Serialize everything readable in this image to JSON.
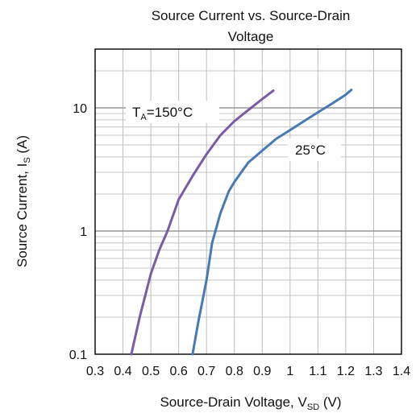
{
  "chart_data": {
    "type": "line",
    "title_line1": "Source Current vs. Source-Drain",
    "title_line2": "Voltage",
    "xlabel": {
      "main": "Source-Drain Voltage, V",
      "sub": "SD",
      "unit": " (V)"
    },
    "ylabel": {
      "main": "Source Current, I",
      "sub": "S",
      "unit": " (A)"
    },
    "x_scale": "linear",
    "y_scale": "log",
    "xlim": [
      0.3,
      1.4
    ],
    "ylim": [
      0.1,
      30
    ],
    "x_ticks": [
      "0.3",
      "0.4",
      "0.5",
      "0.6",
      "0.7",
      "0.8",
      "0.9",
      "1",
      "1.1",
      "1.2",
      "1.3",
      "1.4"
    ],
    "x_tick_values": [
      0.3,
      0.4,
      0.5,
      0.6,
      0.7,
      0.8,
      0.9,
      1.0,
      1.1,
      1.2,
      1.3,
      1.4
    ],
    "y_ticks": [
      "0.1",
      "1",
      "10"
    ],
    "y_tick_values": [
      0.1,
      1,
      10
    ],
    "grid": true,
    "series": [
      {
        "label_main": "T",
        "label_sub": "A",
        "label_rest": "=150°C",
        "color": "#7b5aa6",
        "x": [
          0.43,
          0.46,
          0.5,
          0.53,
          0.56,
          0.6,
          0.65,
          0.7,
          0.75,
          0.8,
          0.85,
          0.9,
          0.94
        ],
        "y": [
          0.1,
          0.2,
          0.45,
          0.7,
          1.0,
          1.8,
          2.8,
          4.2,
          6.0,
          7.8,
          9.6,
          11.8,
          13.8
        ]
      },
      {
        "label_main": "25°C",
        "color": "#4779b5",
        "x": [
          0.65,
          0.67,
          0.7,
          0.72,
          0.75,
          0.78,
          0.8,
          0.85,
          0.9,
          0.95,
          1.0,
          1.05,
          1.1,
          1.15,
          1.2,
          1.22
        ],
        "y": [
          0.1,
          0.18,
          0.4,
          0.8,
          1.4,
          2.1,
          2.5,
          3.6,
          4.5,
          5.6,
          6.6,
          7.8,
          9.2,
          10.8,
          12.8,
          14.0
        ]
      }
    ]
  }
}
